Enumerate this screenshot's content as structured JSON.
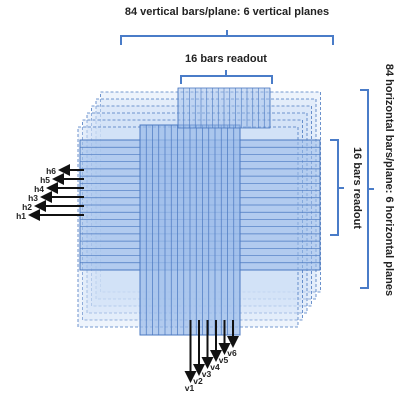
{
  "labels": {
    "top_vertical": "84 vertical bars/plane: 6 vertical planes",
    "top_readout": "16 bars readout",
    "right_horizontal": "84 horizontal bars/plane: 6 horizontal planes",
    "right_readout": "16 bars readout"
  },
  "horizontal_readouts": [
    "h6",
    "h5",
    "h4",
    "h3",
    "h2",
    "h1"
  ],
  "vertical_readouts": [
    "v6",
    "v5",
    "v4",
    "v3",
    "v2",
    "v1"
  ],
  "colors": {
    "bracket": "#4a7cc8",
    "fill_light": "#cfe0f7",
    "fill_mid": "#9cbcea",
    "stroke": "#4a78c0",
    "arrow": "#111111",
    "text": "#222222"
  }
}
